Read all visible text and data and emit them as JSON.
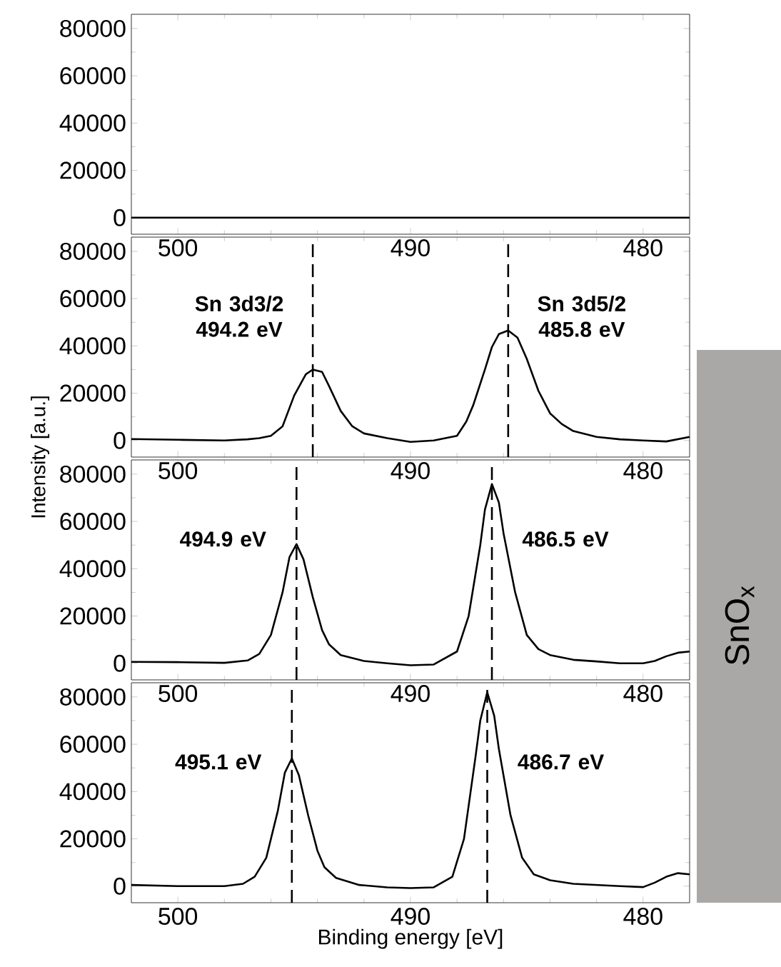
{
  "chart_data": [
    {
      "type": "line",
      "x": [
        502,
        478
      ],
      "series": [
        {
          "color": "#000000",
          "values": [
            0,
            0
          ]
        }
      ],
      "xlim": [
        502,
        478
      ],
      "ylim": [
        -7000,
        86000
      ],
      "xticks": [
        500,
        490,
        480
      ],
      "yticks": [
        0,
        20000,
        40000,
        60000,
        80000
      ],
      "grid": false
    },
    {
      "type": "line",
      "ylabel": "Intensity [a.u.]",
      "x": [
        502,
        500,
        498,
        497,
        496.5,
        496,
        495.5,
        495,
        494.5,
        494.2,
        493.8,
        493.5,
        493,
        492.5,
        492,
        491,
        490,
        489,
        488.5,
        488,
        487.6,
        487.3,
        487.1,
        486.8,
        486.5,
        486.2,
        485.8,
        485.4,
        485,
        484.5,
        484,
        483.5,
        483,
        482,
        481,
        480,
        479,
        478
      ],
      "series": [
        {
          "color": "#000000",
          "values": [
            600,
            300,
            0,
            500,
            1000,
            2000,
            6000,
            19000,
            28000,
            30000,
            29000,
            23000,
            12500,
            6000,
            3000,
            1000,
            -600,
            0,
            1000,
            2000,
            8000,
            15000,
            21000,
            30000,
            39500,
            45000,
            46500,
            43500,
            34500,
            21000,
            11500,
            7000,
            4000,
            1500,
            500,
            0,
            -400,
            1500
          ]
        }
      ],
      "xlim": [
        502,
        478
      ],
      "ylim": [
        -7000,
        86000
      ],
      "xticks": [
        500,
        490,
        480
      ],
      "yticks": [
        0,
        20000,
        40000,
        60000,
        80000
      ],
      "grid": false,
      "ref_lines": [
        {
          "axis": "x",
          "value": 494.2,
          "label": "Sn 3d3/2 494.2 eV",
          "line_style": "dashed"
        },
        {
          "axis": "x",
          "value": 485.8,
          "label": "Sn 3d5/2 485.8 eV",
          "line_style": "dashed"
        }
      ]
    },
    {
      "type": "line",
      "x": [
        502,
        500,
        498,
        497,
        496.5,
        496,
        495.5,
        495.2,
        494.9,
        494.6,
        494.2,
        493.8,
        493.5,
        493,
        492,
        491,
        490,
        489,
        488,
        487.5,
        487,
        486.8,
        486.5,
        486.2,
        486,
        485.5,
        485,
        484.5,
        484,
        483,
        482,
        481,
        480,
        479.5,
        479,
        478.5,
        478
      ],
      "series": [
        {
          "color": "#000000",
          "values": [
            600,
            500,
            200,
            1200,
            4000,
            12000,
            30000,
            45000,
            50400,
            44000,
            28000,
            14000,
            8000,
            3500,
            1000,
            0,
            -800,
            -500,
            5000,
            20000,
            50000,
            65000,
            75800,
            68000,
            55000,
            30000,
            12000,
            6000,
            3500,
            1500,
            800,
            0,
            0,
            1000,
            3000,
            4500,
            5000
          ]
        }
      ],
      "xlim": [
        502,
        478
      ],
      "ylim": [
        -7000,
        86000
      ],
      "xticks": [
        500,
        490,
        480
      ],
      "yticks": [
        0,
        20000,
        40000,
        60000,
        80000
      ],
      "grid": false,
      "ref_lines": [
        {
          "axis": "x",
          "value": 494.9,
          "label": "494.9 eV",
          "line_style": "dashed"
        },
        {
          "axis": "x",
          "value": 486.5,
          "label": "486.5 eV",
          "line_style": "dashed"
        }
      ],
      "annotations": [
        "SnO$_{x}$"
      ]
    },
    {
      "type": "line",
      "xlabel": "Binding energy [eV]",
      "x": [
        502,
        500,
        498,
        497.2,
        496.7,
        496.2,
        495.7,
        495.4,
        495.1,
        494.8,
        494.4,
        494,
        493.7,
        493.2,
        492.2,
        491,
        490,
        489,
        488.2,
        487.7,
        487.2,
        487,
        486.7,
        486.4,
        486.2,
        485.7,
        485.2,
        484.7,
        484,
        483,
        481,
        480,
        479.5,
        479,
        478.5,
        478
      ],
      "series": [
        {
          "color": "#000000",
          "values": [
            500,
            0,
            0,
            1000,
            4000,
            12000,
            32000,
            48000,
            54000,
            47000,
            30000,
            15000,
            8000,
            3500,
            500,
            -500,
            -800,
            -500,
            4000,
            20000,
            55000,
            70000,
            82000,
            72000,
            58000,
            30000,
            12000,
            5000,
            2500,
            1000,
            0,
            -400,
            1500,
            4000,
            5500,
            5000
          ]
        }
      ],
      "xlim": [
        502,
        478
      ],
      "ylim": [
        -7000,
        86000
      ],
      "xticks": [
        500,
        490,
        480
      ],
      "yticks": [
        0,
        20000,
        40000,
        60000,
        80000
      ],
      "grid": false,
      "ref_lines": [
        {
          "axis": "x",
          "value": 495.1,
          "label": "495.1 eV",
          "line_style": "dashed"
        },
        {
          "axis": "x",
          "value": 486.7,
          "label": "486.7 eV",
          "line_style": "dashed"
        }
      ]
    }
  ]
}
